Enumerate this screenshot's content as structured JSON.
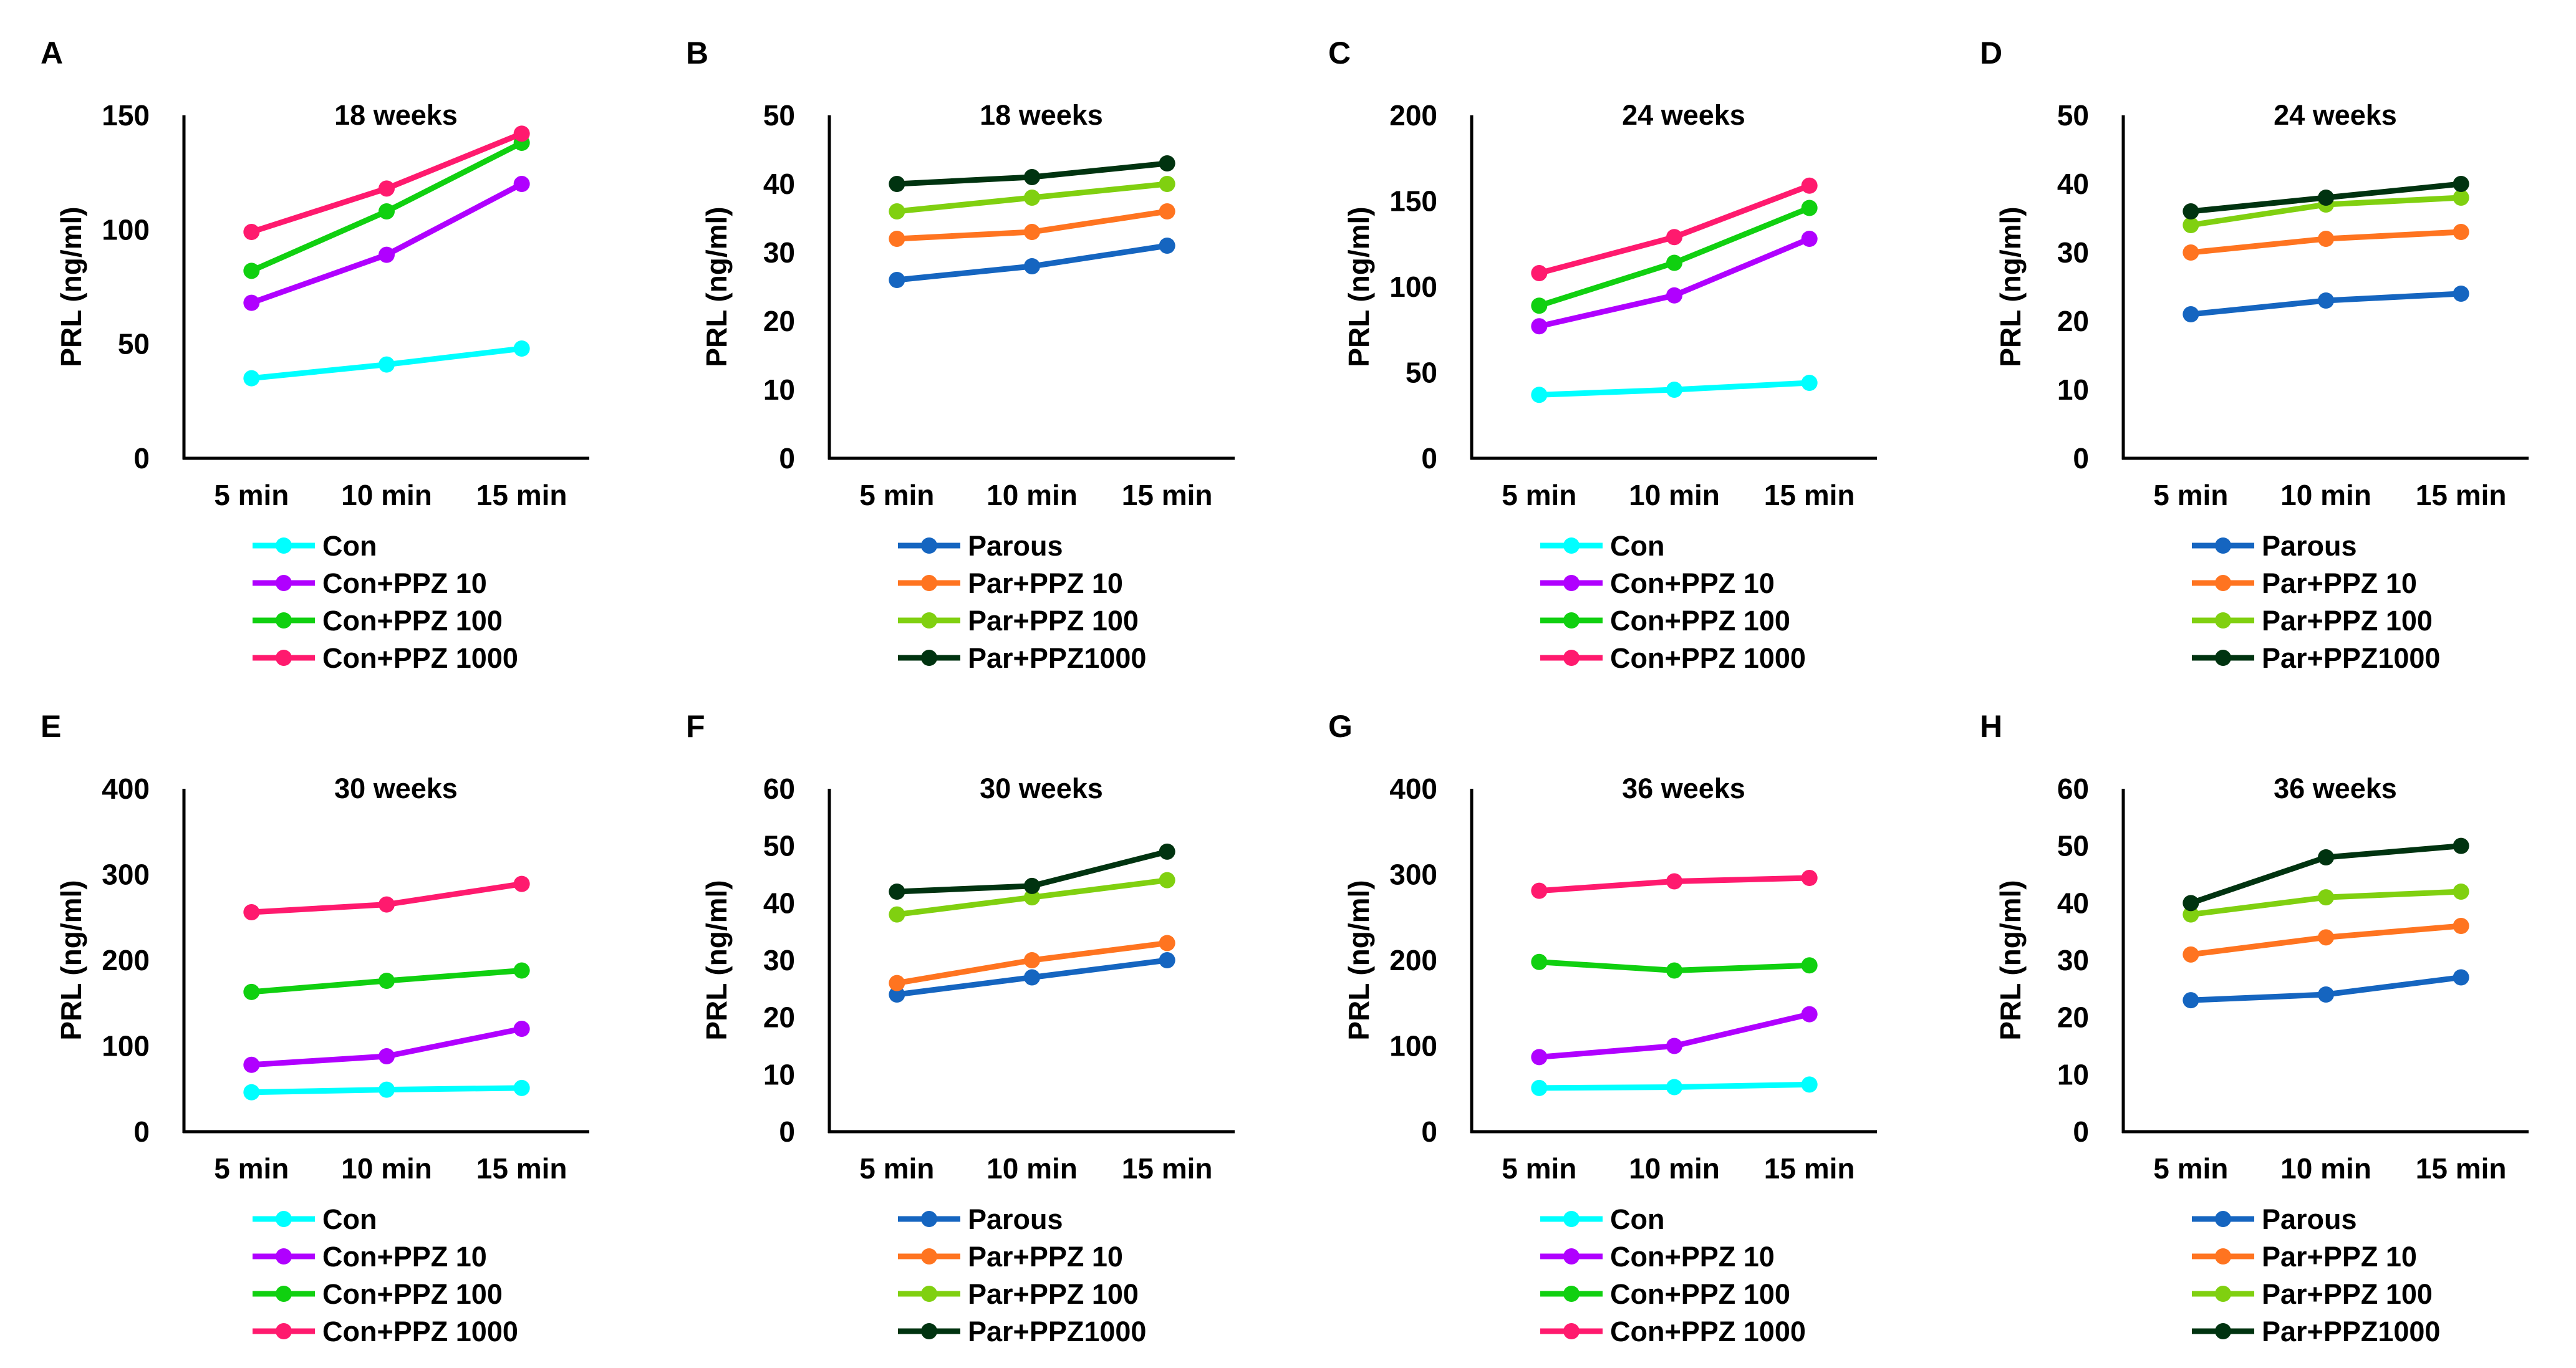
{
  "chart_data": [
    {
      "panel": "A",
      "type": "line",
      "title": "18 weeks",
      "ylabel": "PRL (ng/ml)",
      "ylim": [
        0,
        150
      ],
      "yticks": [
        0,
        50,
        100,
        150
      ],
      "categories": [
        "5 min",
        "10 min",
        "15 min"
      ],
      "series": [
        {
          "name": "Con",
          "color": "#00ffff",
          "values": [
            35,
            41,
            48
          ]
        },
        {
          "name": "Con+PPZ 10",
          "color": "#b000ff",
          "values": [
            68,
            89,
            120
          ]
        },
        {
          "name": "Con+PPZ 100",
          "color": "#10d010",
          "values": [
            82,
            108,
            138
          ]
        },
        {
          "name": "Con+PPZ 1000",
          "color": "#ff1a6e",
          "values": [
            99,
            118,
            142
          ]
        }
      ]
    },
    {
      "panel": "B",
      "type": "line",
      "title": "18 weeks",
      "ylabel": "PRL (ng/ml)",
      "ylim": [
        0,
        50
      ],
      "yticks": [
        0,
        10,
        20,
        30,
        40,
        50
      ],
      "categories": [
        "5 min",
        "10 min",
        "15 min"
      ],
      "series": [
        {
          "name": "Parous",
          "color": "#1565c0",
          "values": [
            26,
            28,
            31
          ]
        },
        {
          "name": "Par+PPZ 10",
          "color": "#ff7420",
          "values": [
            32,
            33,
            36
          ]
        },
        {
          "name": "Par+PPZ 100",
          "color": "#80d010",
          "values": [
            36,
            38,
            40
          ]
        },
        {
          "name": "Par+PPZ1000",
          "color": "#003310",
          "values": [
            40,
            41,
            43
          ]
        }
      ]
    },
    {
      "panel": "C",
      "type": "line",
      "title": "24 weeks",
      "ylabel": "PRL (ng/ml)",
      "ylim": [
        0,
        200
      ],
      "yticks": [
        0,
        50,
        100,
        150,
        200
      ],
      "categories": [
        "5 min",
        "10 min",
        "15 min"
      ],
      "series": [
        {
          "name": "Con",
          "color": "#00ffff",
          "values": [
            37,
            40,
            44
          ]
        },
        {
          "name": "Con+PPZ 10",
          "color": "#b000ff",
          "values": [
            77,
            95,
            128
          ]
        },
        {
          "name": "Con+PPZ 100",
          "color": "#10d010",
          "values": [
            89,
            114,
            146
          ]
        },
        {
          "name": "Con+PPZ 1000",
          "color": "#ff1a6e",
          "values": [
            108,
            129,
            159
          ]
        }
      ]
    },
    {
      "panel": "D",
      "type": "line",
      "title": "24 weeks",
      "ylabel": "PRL (ng/ml)",
      "ylim": [
        0,
        50
      ],
      "yticks": [
        0,
        10,
        20,
        30,
        40,
        50
      ],
      "categories": [
        "5 min",
        "10 min",
        "15 min"
      ],
      "series": [
        {
          "name": "Parous",
          "color": "#1565c0",
          "values": [
            21,
            23,
            24
          ]
        },
        {
          "name": "Par+PPZ 10",
          "color": "#ff7420",
          "values": [
            30,
            32,
            33
          ]
        },
        {
          "name": "Par+PPZ 100",
          "color": "#80d010",
          "values": [
            34,
            37,
            38
          ]
        },
        {
          "name": "Par+PPZ1000",
          "color": "#003310",
          "values": [
            36,
            38,
            40
          ]
        }
      ]
    },
    {
      "panel": "E",
      "type": "line",
      "title": "30 weeks",
      "ylabel": "PRL (ng/ml)",
      "ylim": [
        0,
        400
      ],
      "yticks": [
        0,
        100,
        200,
        300,
        400
      ],
      "categories": [
        "5 min",
        "10 min",
        "15 min"
      ],
      "series": [
        {
          "name": "Con",
          "color": "#00ffff",
          "values": [
            46,
            49,
            51
          ]
        },
        {
          "name": "Con+PPZ 10",
          "color": "#b000ff",
          "values": [
            78,
            88,
            120
          ]
        },
        {
          "name": "Con+PPZ 100",
          "color": "#10d010",
          "values": [
            163,
            176,
            188
          ]
        },
        {
          "name": "Con+PPZ 1000",
          "color": "#ff1a6e",
          "values": [
            256,
            265,
            289
          ]
        }
      ]
    },
    {
      "panel": "F",
      "type": "line",
      "title": "30 weeks",
      "ylabel": "PRL (ng/ml)",
      "ylim": [
        0,
        60
      ],
      "yticks": [
        0,
        10,
        20,
        30,
        40,
        50,
        60
      ],
      "categories": [
        "5 min",
        "10 min",
        "15 min"
      ],
      "series": [
        {
          "name": "Parous",
          "color": "#1565c0",
          "values": [
            24,
            27,
            30
          ]
        },
        {
          "name": "Par+PPZ 10",
          "color": "#ff7420",
          "values": [
            26,
            30,
            33
          ]
        },
        {
          "name": "Par+PPZ 100",
          "color": "#80d010",
          "values": [
            38,
            41,
            44
          ]
        },
        {
          "name": "Par+PPZ1000",
          "color": "#003310",
          "values": [
            42,
            43,
            49
          ]
        }
      ]
    },
    {
      "panel": "G",
      "type": "line",
      "title": "36 weeks",
      "ylabel": "PRL (ng/ml)",
      "ylim": [
        0,
        400
      ],
      "yticks": [
        0,
        100,
        200,
        300,
        400
      ],
      "categories": [
        "5 min",
        "10 min",
        "15 min"
      ],
      "series": [
        {
          "name": "Con",
          "color": "#00ffff",
          "values": [
            51,
            52,
            55
          ]
        },
        {
          "name": "Con+PPZ 10",
          "color": "#b000ff",
          "values": [
            87,
            100,
            137
          ]
        },
        {
          "name": "Con+PPZ 100",
          "color": "#10d010",
          "values": [
            198,
            188,
            194
          ]
        },
        {
          "name": "Con+PPZ 1000",
          "color": "#ff1a6e",
          "values": [
            281,
            292,
            296
          ]
        }
      ]
    },
    {
      "panel": "H",
      "type": "line",
      "title": "36 weeks",
      "ylabel": "PRL (ng/ml)",
      "ylim": [
        0,
        60
      ],
      "yticks": [
        0,
        10,
        20,
        30,
        40,
        50,
        60
      ],
      "categories": [
        "5 min",
        "10 min",
        "15 min"
      ],
      "series": [
        {
          "name": "Parous",
          "color": "#1565c0",
          "values": [
            23,
            24,
            27
          ]
        },
        {
          "name": "Par+PPZ 10",
          "color": "#ff7420",
          "values": [
            31,
            34,
            36
          ]
        },
        {
          "name": "Par+PPZ 100",
          "color": "#80d010",
          "values": [
            38,
            41,
            42
          ]
        },
        {
          "name": "Par+PPZ1000",
          "color": "#003310",
          "values": [
            40,
            48,
            50
          ]
        }
      ]
    }
  ]
}
